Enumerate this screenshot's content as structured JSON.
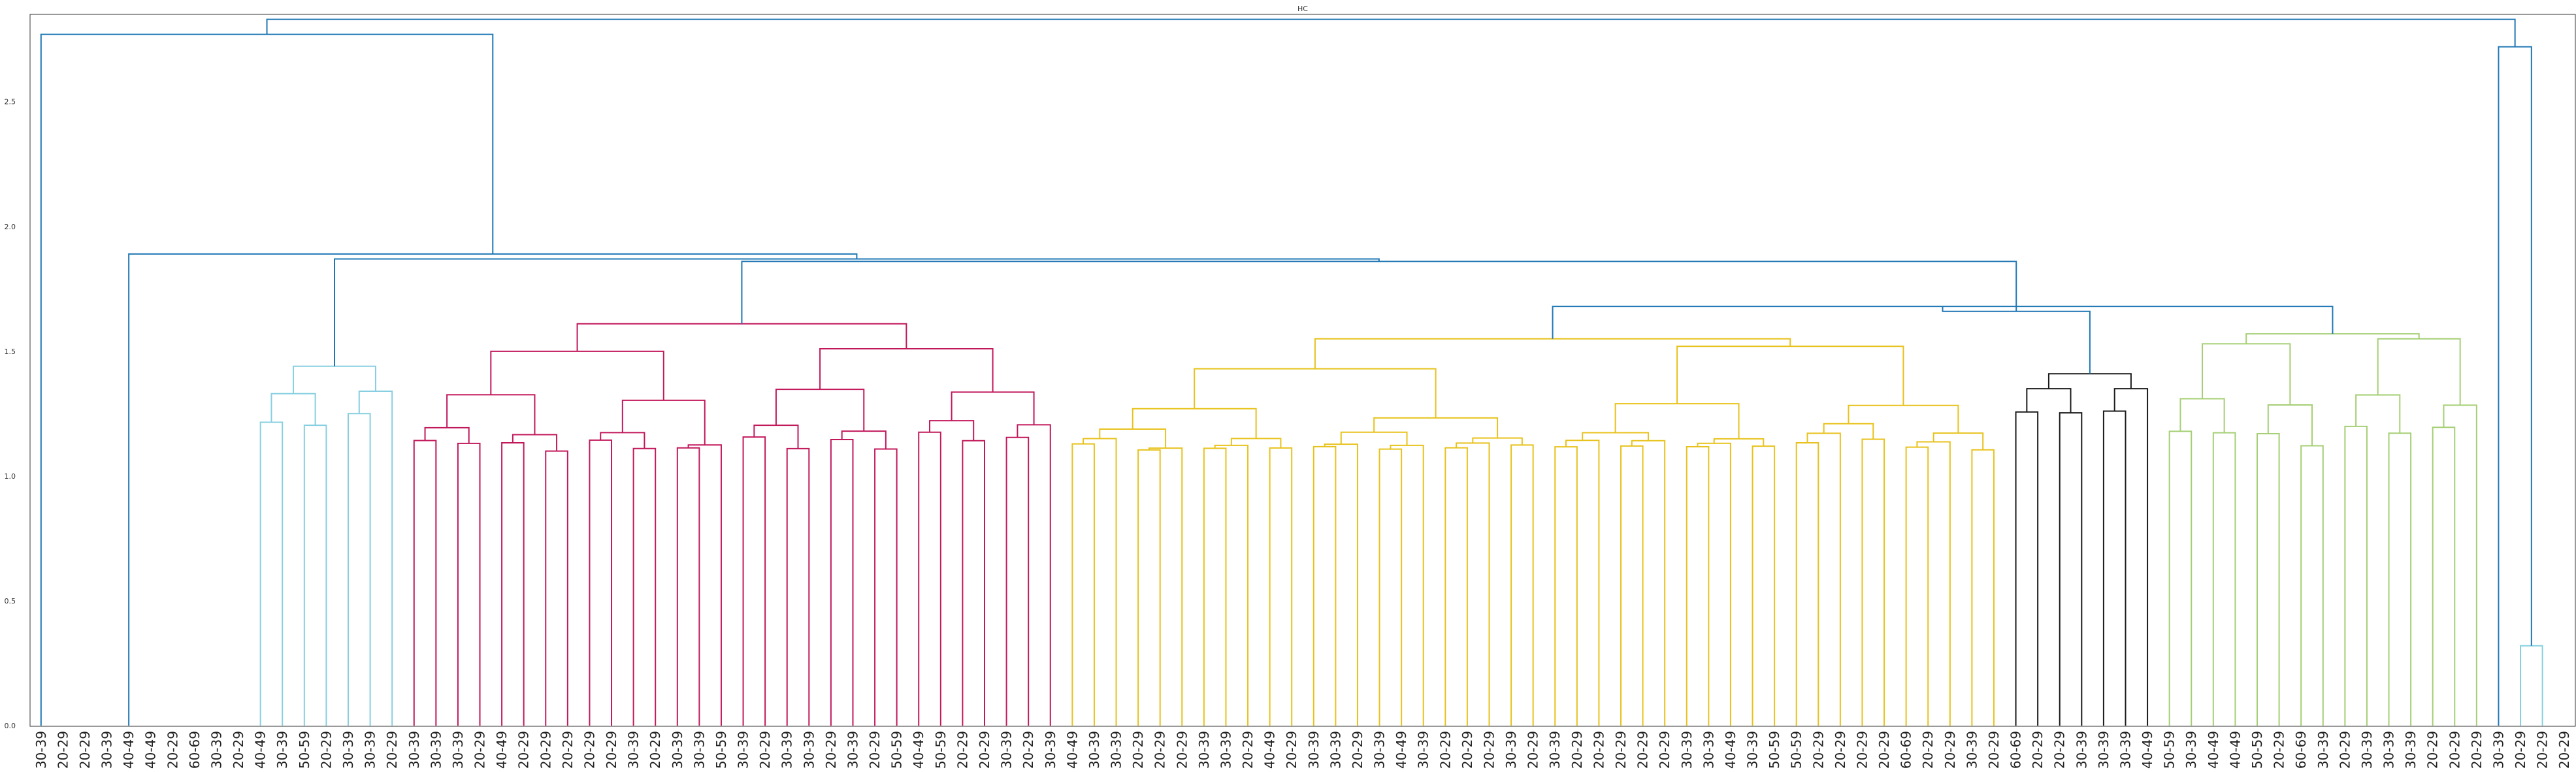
{
  "chart_data": {
    "type": "dendrogram",
    "title": "HC",
    "xlabel": "",
    "ylabel": "",
    "ylim": [
      0,
      2.85
    ],
    "y_ticks": [
      0.0,
      0.5,
      1.0,
      1.5,
      2.0,
      2.5
    ],
    "y_tick_labels": [
      "0.0",
      "0.5",
      "1.0",
      "1.5",
      "2.0",
      "2.5"
    ],
    "grid": false,
    "labels": [
      "30-39",
      "20-29",
      "20-29",
      "30-39",
      "40-49",
      "40-49",
      "20-29",
      "60-69",
      "30-39",
      "20-29",
      "40-49",
      "30-39",
      "50-59",
      "20-29",
      "30-39",
      "30-39",
      "20-29",
      "30-39",
      "30-39",
      "30-39",
      "20-29",
      "40-49",
      "20-29",
      "20-29",
      "20-29",
      "20-29",
      "20-29",
      "30-39",
      "20-29",
      "30-39",
      "30-39",
      "50-59",
      "30-39",
      "20-29",
      "30-39",
      "30-39",
      "20-29",
      "30-39",
      "20-29",
      "50-59",
      "40-49",
      "50-59",
      "20-29",
      "20-29",
      "30-39",
      "20-29",
      "30-39",
      "40-49",
      "30-39",
      "30-39",
      "20-29",
      "20-29",
      "20-29",
      "30-39",
      "30-39",
      "20-29",
      "40-49",
      "20-29",
      "30-39",
      "30-39",
      "20-29",
      "30-39",
      "40-49",
      "30-39",
      "20-29",
      "20-29",
      "20-29",
      "30-39",
      "20-29",
      "30-39",
      "20-29",
      "20-29",
      "20-29",
      "20-29",
      "20-29",
      "30-39",
      "30-39",
      "40-49",
      "30-39",
      "50-59",
      "50-59",
      "20-29",
      "20-29",
      "20-29",
      "20-29",
      "60-69",
      "20-29",
      "20-29",
      "30-39",
      "20-29",
      "60-69",
      "20-29",
      "20-29",
      "30-39",
      "30-39",
      "30-39",
      "40-49",
      "50-59",
      "30-39",
      "40-49",
      "40-49",
      "50-59",
      "20-29",
      "60-69",
      "30-39",
      "20-29",
      "30-39",
      "30-39",
      "30-39",
      "20-29",
      "20-29",
      "20-29",
      "30-39",
      "20-29",
      "20-29",
      "20-29"
    ],
    "colors": {
      "root": "#1f77b4",
      "cyan": "#87cfe0",
      "magenta": "#c2185b",
      "yellow": "#e8c21c",
      "black": "#1a1a1a",
      "green": "#a5cf74"
    },
    "clusters": {
      "magenta": {
        "root": 1.61,
        "subs": [
          1.5,
          1.51
        ]
      },
      "yellow": {
        "root": 1.55,
        "subs": [
          1.43,
          1.52
        ]
      },
      "cyan": {
        "root": 1.44,
        "subs": [
          1.33,
          1.34
        ]
      },
      "black": {
        "root": 1.41,
        "subs": [
          1.35,
          1.35
        ]
      },
      "green": {
        "root": 1.57,
        "subs": [
          1.53,
          1.55
        ]
      }
    },
    "merges": {
      "yellow_black_green": 1.68,
      "yellow_join": 1.66,
      "magenta_rest": 1.86,
      "cyan_rest": 1.87,
      "mid_rest": 1.89,
      "left_main": 2.77,
      "outer_pair": 0.32,
      "outer_join": 2.72,
      "root": 2.83
    }
  }
}
